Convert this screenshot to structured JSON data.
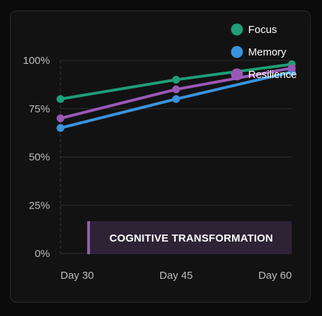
{
  "chart_data": {
    "type": "line",
    "categories": [
      "Day 30",
      "Day 45",
      "Day 60"
    ],
    "ylim": [
      0,
      100
    ],
    "yticks": [
      "0%",
      "25%",
      "50%",
      "75%",
      "100%"
    ],
    "ytick_values": [
      0,
      25,
      50,
      75,
      100
    ],
    "grid": true,
    "legend_position": "top-right",
    "series": [
      {
        "name": "Focus",
        "values": [
          80,
          90,
          98
        ],
        "color": "#1f9e78"
      },
      {
        "name": "Memory",
        "values": [
          65,
          80,
          94
        ],
        "color": "#3a93dd"
      },
      {
        "name": "Resilience",
        "values": [
          70,
          85,
          96
        ],
        "color": "#9b59b6"
      }
    ],
    "annotation": {
      "text": "COGNITIVE TRANSFORMATION",
      "accent_color": "#9b59b6"
    }
  }
}
